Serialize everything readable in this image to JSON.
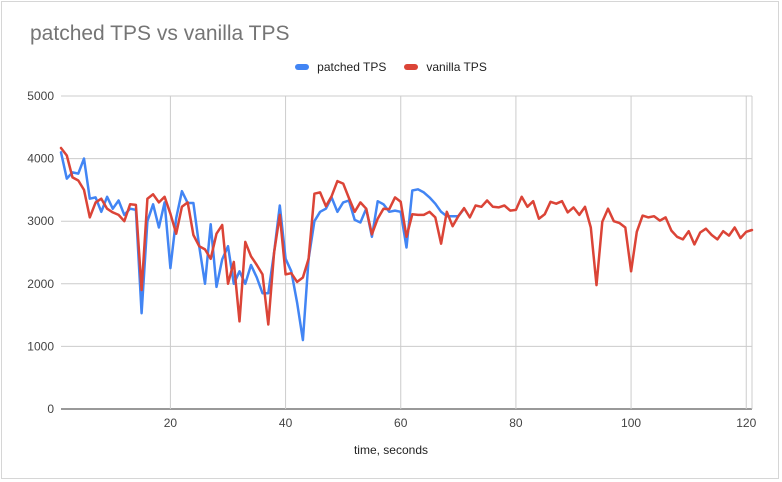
{
  "chart_data": {
    "type": "line",
    "title": "patched TPS vs vanilla TPS",
    "xlabel": "time, seconds",
    "ylabel": "",
    "xlim": [
      1,
      121
    ],
    "ylim": [
      0,
      5000
    ],
    "xticks": [
      20,
      40,
      60,
      80,
      100,
      120
    ],
    "yticks": [
      0,
      1000,
      2000,
      3000,
      4000,
      5000
    ],
    "grid": true,
    "legend_position": "top",
    "series": [
      {
        "name": "patched TPS",
        "color": "#4285f4",
        "x": [
          1,
          2,
          3,
          4,
          5,
          6,
          7,
          8,
          9,
          10,
          11,
          12,
          13,
          14,
          15,
          16,
          17,
          18,
          19,
          20,
          21,
          22,
          23,
          24,
          25,
          26,
          27,
          28,
          29,
          30,
          31,
          32,
          33,
          34,
          35,
          36,
          37,
          38,
          39,
          40,
          41,
          42,
          43,
          44,
          45,
          46,
          47,
          48,
          49,
          50,
          51,
          52,
          53,
          54,
          55,
          56,
          57,
          58,
          59,
          60,
          61,
          62,
          63,
          64,
          65,
          66,
          67,
          68,
          69,
          70,
          71
        ],
        "values": [
          4100,
          3680,
          3780,
          3760,
          4000,
          3360,
          3380,
          3150,
          3390,
          3200,
          3330,
          3100,
          3200,
          3180,
          1530,
          3000,
          3270,
          2900,
          3300,
          2250,
          3050,
          3480,
          3290,
          3290,
          2600,
          2000,
          2950,
          1950,
          2390,
          2600,
          2000,
          2200,
          2000,
          2300,
          2100,
          1850,
          1850,
          2500,
          3250,
          2400,
          2200,
          1700,
          1100,
          2400,
          3000,
          3150,
          3200,
          3380,
          3150,
          3300,
          3330,
          3020,
          2980,
          3200,
          2750,
          3320,
          3270,
          3150,
          3170,
          3150,
          2580,
          3490,
          3510,
          3460,
          3380,
          3280,
          3150,
          3080,
          3080,
          3080,
          3200
        ]
      },
      {
        "name": "vanilla TPS",
        "color": "#db4437",
        "x": [
          1,
          2,
          3,
          4,
          5,
          6,
          7,
          8,
          9,
          10,
          11,
          12,
          13,
          14,
          15,
          16,
          17,
          18,
          19,
          20,
          21,
          22,
          23,
          24,
          25,
          26,
          27,
          28,
          29,
          30,
          31,
          32,
          33,
          34,
          35,
          36,
          37,
          38,
          39,
          40,
          41,
          42,
          43,
          44,
          45,
          46,
          47,
          48,
          49,
          50,
          51,
          52,
          53,
          54,
          55,
          56,
          57,
          58,
          59,
          60,
          61,
          62,
          63,
          64,
          65,
          66,
          67,
          68,
          69,
          70,
          71,
          72,
          73,
          74,
          75,
          76,
          77,
          78,
          79,
          80,
          81,
          82,
          83,
          84,
          85,
          86,
          87,
          88,
          89,
          90,
          91,
          92,
          93,
          94,
          95,
          96,
          97,
          98,
          99,
          100,
          101,
          102,
          103,
          104,
          105,
          106,
          107,
          108,
          109,
          110,
          111,
          112,
          113,
          114,
          115,
          116,
          117,
          118,
          119,
          120,
          121
        ],
        "values": [
          4170,
          4050,
          3700,
          3650,
          3500,
          3060,
          3300,
          3360,
          3200,
          3140,
          3100,
          3000,
          3270,
          3260,
          1900,
          3360,
          3430,
          3300,
          3390,
          3120,
          2800,
          3230,
          3300,
          2780,
          2600,
          2550,
          2400,
          2800,
          2940,
          2000,
          2350,
          1400,
          2670,
          2440,
          2300,
          2150,
          1350,
          2500,
          3100,
          2150,
          2170,
          2030,
          2100,
          2400,
          3440,
          3460,
          3240,
          3400,
          3640,
          3600,
          3370,
          3150,
          3300,
          3200,
          2790,
          3040,
          3200,
          3190,
          3380,
          3310,
          2750,
          3110,
          3100,
          3100,
          3150,
          3060,
          2640,
          3150,
          2920,
          3080,
          3210,
          3060,
          3250,
          3230,
          3330,
          3230,
          3220,
          3250,
          3170,
          3180,
          3390,
          3230,
          3320,
          3040,
          3110,
          3310,
          3280,
          3320,
          3140,
          3220,
          3100,
          3230,
          2900,
          1980,
          2990,
          3200,
          3000,
          2970,
          2900,
          2200,
          2830,
          3090,
          3060,
          3080,
          3010,
          3060,
          2850,
          2750,
          2710,
          2840,
          2630,
          2820,
          2880,
          2780,
          2710,
          2840,
          2770,
          2900,
          2730,
          2830,
          2860
        ]
      }
    ]
  }
}
